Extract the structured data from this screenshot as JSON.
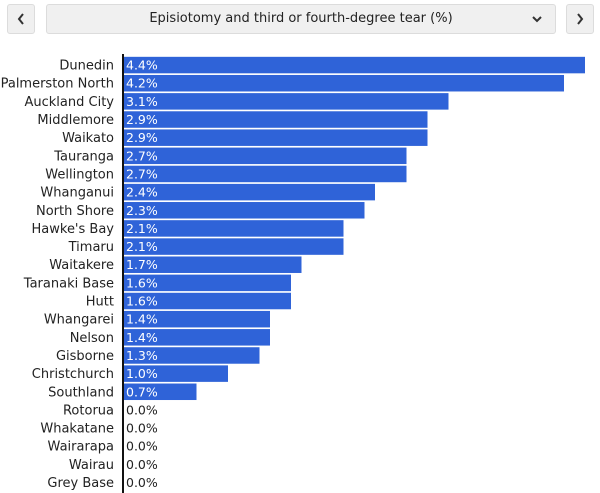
{
  "controls": {
    "prev_icon": "chevron-left-icon",
    "next_icon": "chevron-right-icon",
    "dropdown_icon": "chevron-down-icon",
    "selected_indicator": "Episiotomy and third or fourth-degree tear (%)"
  },
  "colors": {
    "bar": "#2f63d8",
    "bar_label": "#ffffff",
    "outside_label": "#222222",
    "axis": "#111111",
    "button_bg": "#f0f0f0"
  },
  "chart_data": {
    "type": "bar",
    "orientation": "horizontal",
    "title": "",
    "xlabel": "",
    "ylabel": "",
    "xlim": [
      0,
      4.4
    ],
    "grid": false,
    "legend": "none",
    "categories": [
      "Dunedin",
      "Palmerston North",
      "Auckland City",
      "Middlemore",
      "Waikato",
      "Tauranga",
      "Wellington",
      "Whanganui",
      "North Shore",
      "Hawke's Bay",
      "Timaru",
      "Waitakere",
      "Taranaki Base",
      "Hutt",
      "Whangarei",
      "Nelson",
      "Gisborne",
      "Christchurch",
      "Southland",
      "Rotorua",
      "Whakatane",
      "Wairarapa",
      "Wairau",
      "Grey Base"
    ],
    "values": [
      4.4,
      4.2,
      3.1,
      2.9,
      2.9,
      2.7,
      2.7,
      2.4,
      2.3,
      2.1,
      2.1,
      1.7,
      1.6,
      1.6,
      1.4,
      1.4,
      1.3,
      1.0,
      0.7,
      0.0,
      0.0,
      0.0,
      0.0,
      0.0
    ],
    "labels": [
      "4.4%",
      "4.2%",
      "3.1%",
      "2.9%",
      "2.9%",
      "2.7%",
      "2.7%",
      "2.4%",
      "2.3%",
      "2.1%",
      "2.1%",
      "1.7%",
      "1.6%",
      "1.6%",
      "1.4%",
      "1.4%",
      "1.3%",
      "1.0%",
      "0.7%",
      "0.0%",
      "0.0%",
      "0.0%",
      "0.0%",
      "0.0%"
    ]
  }
}
